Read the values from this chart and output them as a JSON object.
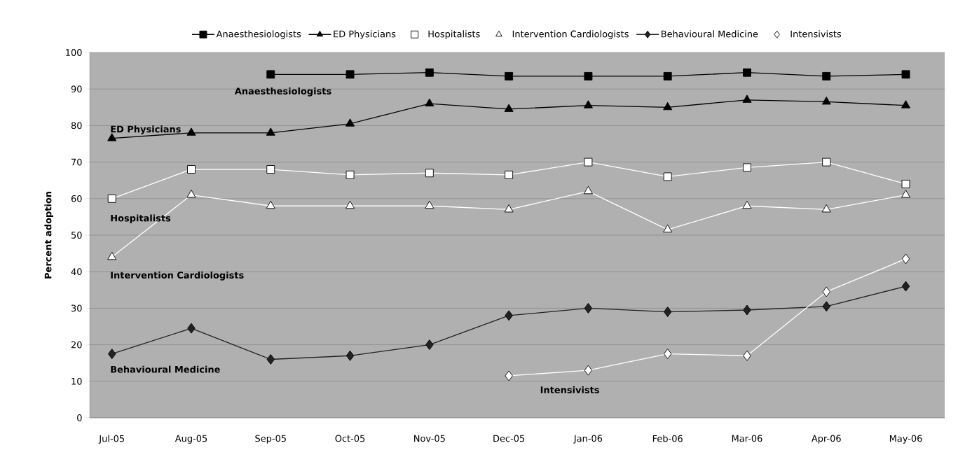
{
  "chart_data": {
    "type": "line",
    "ylabel": "Percent adoption",
    "categories": [
      "Jul-05",
      "Aug-05",
      "Sep-05",
      "Oct-05",
      "Nov-05",
      "Dec-05",
      "Jan-06",
      "Feb-06",
      "Mar-06",
      "Apr-06",
      "May-06"
    ],
    "series": [
      {
        "name": "Anaesthesiologists",
        "color": "#000000",
        "marker": "square",
        "values": [
          null,
          null,
          94,
          94,
          94.5,
          93.5,
          93.5,
          93.5,
          94.5,
          93.5,
          94
        ]
      },
      {
        "name": "ED Physicians",
        "color": "#000000",
        "marker": "triangle",
        "values": [
          76.5,
          78,
          78,
          80.5,
          86,
          84.5,
          85.5,
          85,
          87,
          86.5,
          85.5
        ]
      },
      {
        "name": "Hospitalists",
        "color": "#ffffff",
        "marker": "square",
        "values": [
          60,
          68,
          68,
          66.5,
          67,
          66.5,
          70,
          66,
          68.5,
          70,
          64
        ]
      },
      {
        "name": "Intervention Cardiologists",
        "color": "#ffffff",
        "marker": "triangle",
        "values": [
          44,
          61,
          58,
          58,
          58,
          57,
          62,
          51.5,
          58,
          57,
          61
        ]
      },
      {
        "name": "Behavioural Medicine",
        "color": "#222222",
        "marker": "diamond",
        "values": [
          17.5,
          24.5,
          16,
          17,
          20,
          28,
          30,
          29,
          29.5,
          30.5,
          36
        ]
      },
      {
        "name": "Intensivists",
        "color": "#ffffff",
        "marker": "diamond",
        "values": [
          null,
          null,
          null,
          null,
          null,
          11.5,
          13,
          17.5,
          17,
          34.5,
          43.5
        ]
      }
    ],
    "ylim": [
      0,
      100
    ],
    "yticks": [
      0,
      10,
      20,
      30,
      40,
      50,
      60,
      70,
      80,
      90,
      100
    ],
    "grid": "y",
    "legend": "top",
    "line_style": "solid"
  }
}
